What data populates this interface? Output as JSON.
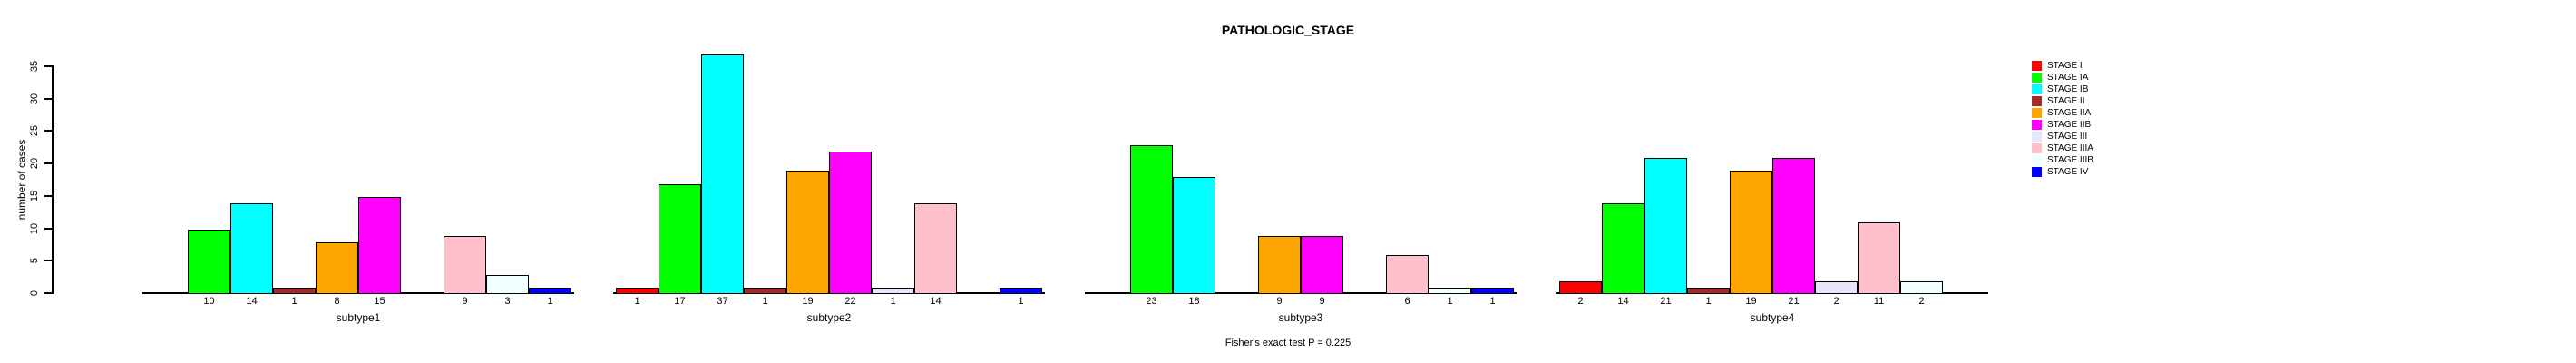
{
  "chart_data": {
    "type": "bar",
    "title": "PATHOLOGIC_STAGE",
    "ylabel": "number of cases",
    "xlabel": "",
    "ylim": [
      0,
      35
    ],
    "yticks": [
      0,
      5,
      10,
      15,
      20,
      25,
      30,
      35
    ],
    "grid": false,
    "legend_position": "right",
    "bar_value_labels": true,
    "annotation": "Fisher's exact test P = 0.225",
    "categories": [
      "subtype1",
      "subtype2",
      "subtype3",
      "subtype4"
    ],
    "series": [
      {
        "name": "STAGE I",
        "color": "#FF0000",
        "values": [
          0,
          1,
          0,
          2
        ]
      },
      {
        "name": "STAGE IA",
        "color": "#00FF00",
        "values": [
          10,
          17,
          23,
          14
        ]
      },
      {
        "name": "STAGE IB",
        "color": "#00FFFF",
        "values": [
          14,
          37,
          18,
          21
        ]
      },
      {
        "name": "STAGE II",
        "color": "#A52A2A",
        "values": [
          1,
          1,
          0,
          1
        ]
      },
      {
        "name": "STAGE IIA",
        "color": "#FFA500",
        "values": [
          8,
          19,
          9,
          19
        ]
      },
      {
        "name": "STAGE IIB",
        "color": "#FF00FF",
        "values": [
          15,
          22,
          9,
          21
        ]
      },
      {
        "name": "STAGE III",
        "color": "#E6E6FA",
        "values": [
          0,
          1,
          0,
          2
        ]
      },
      {
        "name": "STAGE IIIA",
        "color": "#FFC0CB",
        "values": [
          9,
          14,
          6,
          11
        ]
      },
      {
        "name": "STAGE IIIB",
        "color": "#F0FFFF",
        "values": [
          3,
          0,
          1,
          2
        ]
      },
      {
        "name": "STAGE IV",
        "color": "#0000FF",
        "values": [
          1,
          1,
          1,
          0
        ]
      }
    ]
  }
}
